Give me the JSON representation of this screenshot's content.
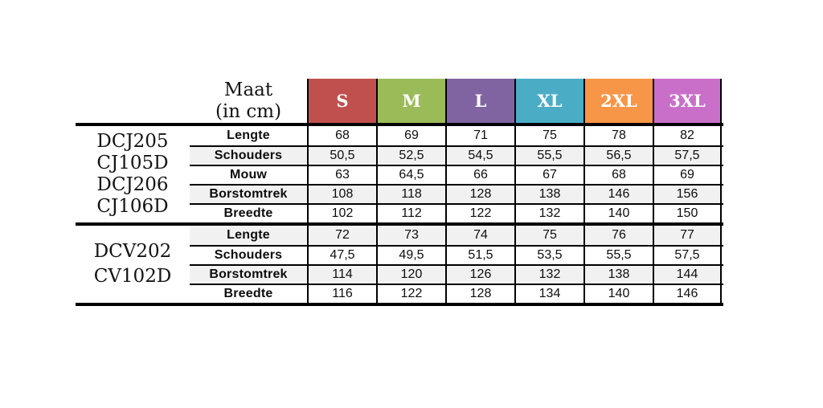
{
  "chart_data": {
    "type": "table",
    "title": "Maat (in cm)",
    "corner": {
      "line1": "Maat",
      "line2": "(in cm)"
    },
    "columns": [
      "S",
      "M",
      "L",
      "XL",
      "2XL",
      "3XL"
    ],
    "column_colors": [
      "#C0504D",
      "#9BBB59",
      "#8064A2",
      "#4BACC6",
      "#F79646",
      "#C96FC9"
    ],
    "groups": [
      {
        "product_codes": [
          "DCJ205",
          "CJ105D",
          "DCJ206",
          "CJ106D"
        ],
        "rows": [
          {
            "label": "Lengte",
            "values": [
              "68",
              "69",
              "71",
              "75",
              "78",
              "82"
            ]
          },
          {
            "label": "Schouders",
            "values": [
              "50,5",
              "52,5",
              "54,5",
              "55,5",
              "56,5",
              "57,5"
            ]
          },
          {
            "label": "Mouw",
            "values": [
              "63",
              "64,5",
              "66",
              "67",
              "68",
              "69"
            ]
          },
          {
            "label": "Borstomtrek",
            "values": [
              "108",
              "118",
              "128",
              "138",
              "146",
              "156"
            ]
          },
          {
            "label": "Breedte",
            "values": [
              "102",
              "112",
              "122",
              "132",
              "140",
              "150"
            ]
          }
        ]
      },
      {
        "product_codes": [
          "DCV202",
          "CV102D"
        ],
        "rows": [
          {
            "label": "Lengte",
            "values": [
              "72",
              "73",
              "74",
              "75",
              "76",
              "77"
            ]
          },
          {
            "label": "Schouders",
            "values": [
              "47,5",
              "49,5",
              "51,5",
              "53,5",
              "55,5",
              "57,5"
            ]
          },
          {
            "label": "Borstomtrek",
            "values": [
              "114",
              "120",
              "126",
              "132",
              "138",
              "144"
            ]
          },
          {
            "label": "Breedte",
            "values": [
              "116",
              "122",
              "128",
              "134",
              "140",
              "146"
            ]
          }
        ]
      }
    ],
    "styles": {
      "row_alt_color": "#F1F1F1",
      "border_color": "#000000",
      "header_text_color": "#FFFFFF"
    }
  }
}
